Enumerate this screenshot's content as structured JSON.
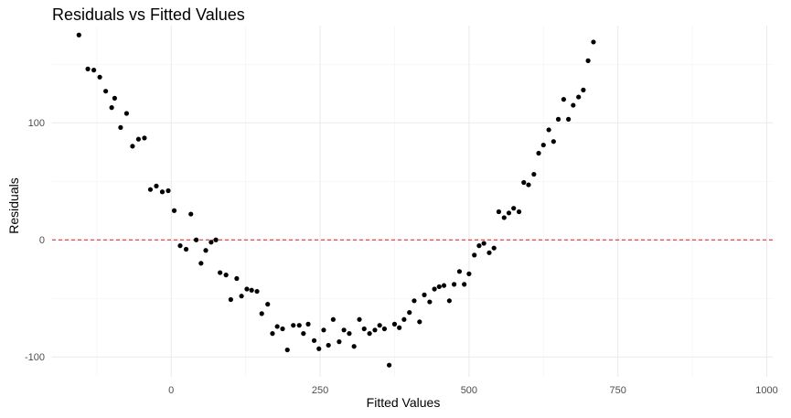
{
  "chart_data": {
    "type": "scatter",
    "title": "Residuals vs Fitted Values",
    "xlabel": "Fitted Values",
    "ylabel": "Residuals",
    "xlim": [
      -200,
      1010
    ],
    "ylim": [
      -117,
      183
    ],
    "x_ticks": [
      0,
      250,
      500,
      750,
      1000
    ],
    "x_tick_labels": [
      "0",
      "250",
      "500",
      "750",
      "1000"
    ],
    "y_ticks": [
      -100,
      0,
      100
    ],
    "y_tick_labels": [
      "-100",
      "0",
      "100"
    ],
    "grid": true,
    "reference_line": {
      "y": 0,
      "style": "dashed",
      "color": "#e41a1c"
    },
    "point_color": "#000000",
    "points": [
      {
        "x": -155,
        "y": 175
      },
      {
        "x": -140,
        "y": 146
      },
      {
        "x": -130,
        "y": 145
      },
      {
        "x": -120,
        "y": 139
      },
      {
        "x": -110,
        "y": 127
      },
      {
        "x": -100,
        "y": 113
      },
      {
        "x": -95,
        "y": 121
      },
      {
        "x": -85,
        "y": 96
      },
      {
        "x": -75,
        "y": 108
      },
      {
        "x": -65,
        "y": 80
      },
      {
        "x": -55,
        "y": 86
      },
      {
        "x": -45,
        "y": 87
      },
      {
        "x": -35,
        "y": 43
      },
      {
        "x": -25,
        "y": 46
      },
      {
        "x": -15,
        "y": 41
      },
      {
        "x": -5,
        "y": 42
      },
      {
        "x": 5,
        "y": 25
      },
      {
        "x": 15,
        "y": -5
      },
      {
        "x": 25,
        "y": -8
      },
      {
        "x": 33,
        "y": 22
      },
      {
        "x": 42,
        "y": 0
      },
      {
        "x": 50,
        "y": -20
      },
      {
        "x": 58,
        "y": -9
      },
      {
        "x": 67,
        "y": -2
      },
      {
        "x": 75,
        "y": 0
      },
      {
        "x": 82,
        "y": -28
      },
      {
        "x": 92,
        "y": -30
      },
      {
        "x": 100,
        "y": -51
      },
      {
        "x": 110,
        "y": -33
      },
      {
        "x": 118,
        "y": -48
      },
      {
        "x": 127,
        "y": -42
      },
      {
        "x": 135,
        "y": -43
      },
      {
        "x": 144,
        "y": -44
      },
      {
        "x": 152,
        "y": -63
      },
      {
        "x": 162,
        "y": -55
      },
      {
        "x": 170,
        "y": -80
      },
      {
        "x": 178,
        "y": -74
      },
      {
        "x": 187,
        "y": -76
      },
      {
        "x": 195,
        "y": -94
      },
      {
        "x": 205,
        "y": -73
      },
      {
        "x": 215,
        "y": -73
      },
      {
        "x": 222,
        "y": -80
      },
      {
        "x": 230,
        "y": -72
      },
      {
        "x": 240,
        "y": -86
      },
      {
        "x": 248,
        "y": -93
      },
      {
        "x": 256,
        "y": -77
      },
      {
        "x": 264,
        "y": -90
      },
      {
        "x": 272,
        "y": -68
      },
      {
        "x": 282,
        "y": -87
      },
      {
        "x": 290,
        "y": -77
      },
      {
        "x": 299,
        "y": -80
      },
      {
        "x": 307,
        "y": -91
      },
      {
        "x": 316,
        "y": -68
      },
      {
        "x": 324,
        "y": -76
      },
      {
        "x": 333,
        "y": -80
      },
      {
        "x": 342,
        "y": -77
      },
      {
        "x": 350,
        "y": -73
      },
      {
        "x": 358,
        "y": -76
      },
      {
        "x": 366,
        "y": -107
      },
      {
        "x": 375,
        "y": -72
      },
      {
        "x": 383,
        "y": -75
      },
      {
        "x": 391,
        "y": -68
      },
      {
        "x": 400,
        "y": -62
      },
      {
        "x": 408,
        "y": -52
      },
      {
        "x": 417,
        "y": -70
      },
      {
        "x": 425,
        "y": -47
      },
      {
        "x": 434,
        "y": -53
      },
      {
        "x": 442,
        "y": -42
      },
      {
        "x": 450,
        "y": -40
      },
      {
        "x": 458,
        "y": -39
      },
      {
        "x": 467,
        "y": -52
      },
      {
        "x": 475,
        "y": -38
      },
      {
        "x": 484,
        "y": -27
      },
      {
        "x": 492,
        "y": -38
      },
      {
        "x": 500,
        "y": -29
      },
      {
        "x": 509,
        "y": -13
      },
      {
        "x": 517,
        "y": -5
      },
      {
        "x": 525,
        "y": -3
      },
      {
        "x": 534,
        "y": -11
      },
      {
        "x": 542,
        "y": -7
      },
      {
        "x": 550,
        "y": 24
      },
      {
        "x": 559,
        "y": 19
      },
      {
        "x": 567,
        "y": 23
      },
      {
        "x": 575,
        "y": 27
      },
      {
        "x": 584,
        "y": 24
      },
      {
        "x": 592,
        "y": 49
      },
      {
        "x": 600,
        "y": 47
      },
      {
        "x": 609,
        "y": 56
      },
      {
        "x": 617,
        "y": 74
      },
      {
        "x": 625,
        "y": 81
      },
      {
        "x": 634,
        "y": 94
      },
      {
        "x": 642,
        "y": 84
      },
      {
        "x": 650,
        "y": 103
      },
      {
        "x": 659,
        "y": 120
      },
      {
        "x": 667,
        "y": 103
      },
      {
        "x": 675,
        "y": 115
      },
      {
        "x": 684,
        "y": 122
      },
      {
        "x": 692,
        "y": 128
      },
      {
        "x": 700,
        "y": 153
      },
      {
        "x": 709,
        "y": 169
      }
    ]
  }
}
